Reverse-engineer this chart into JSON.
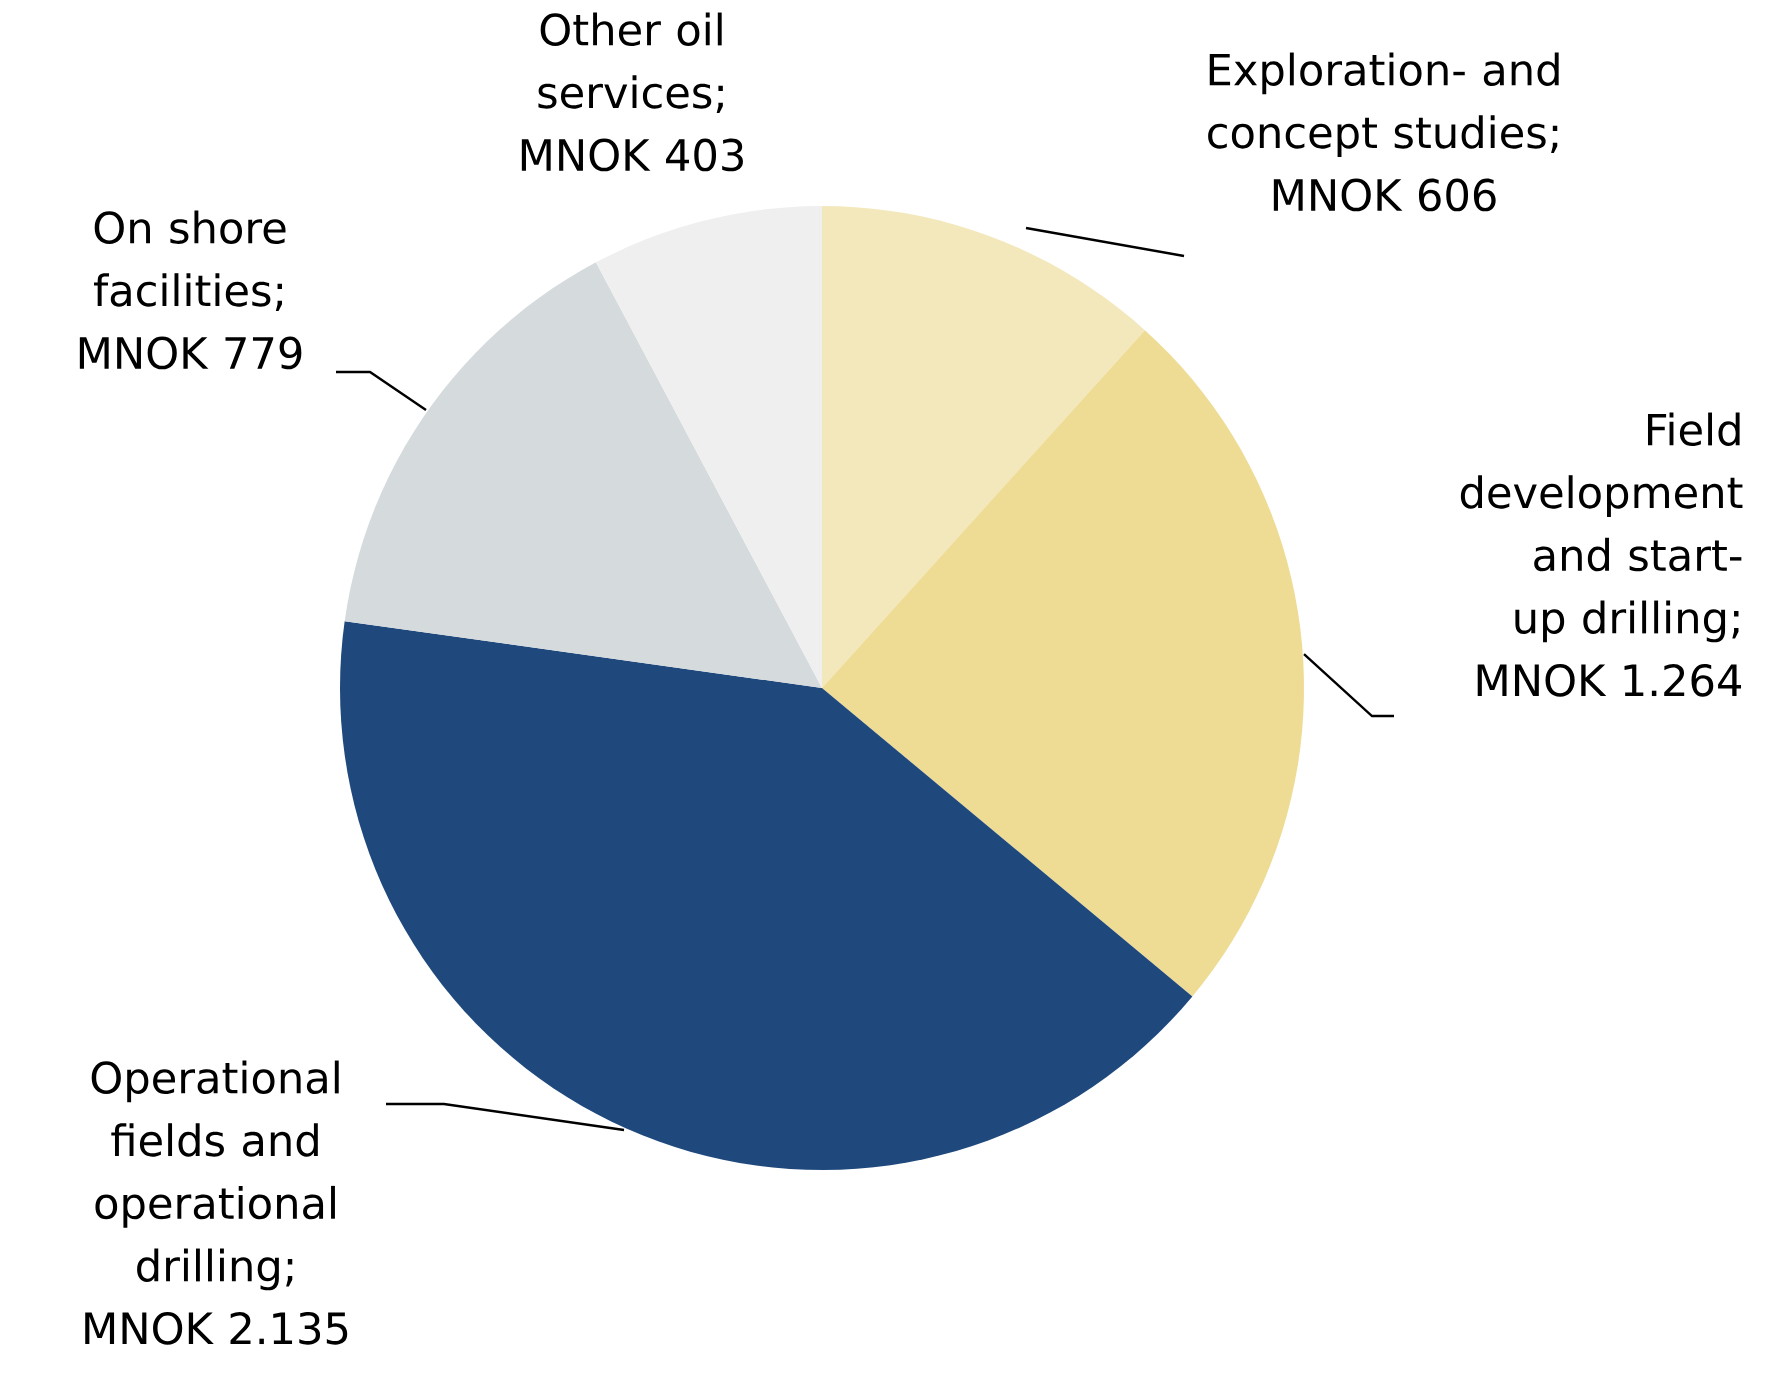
{
  "chart_data": {
    "type": "pie",
    "categories": [
      "Exploration- and concept studies; MNOK 606",
      "Field development and start-up drilling; MNOK 1.264",
      "Operational fields and operational drilling; MNOK 2.135",
      "On shore facilities; MNOK 779",
      "Other oil services; MNOK 403"
    ],
    "values": [
      606,
      1264,
      2135,
      779,
      403
    ],
    "colors": [
      "#f3e8bc",
      "#eedc94",
      "#1f497d",
      "#d5dadd",
      "#efeff0"
    ]
  }
}
